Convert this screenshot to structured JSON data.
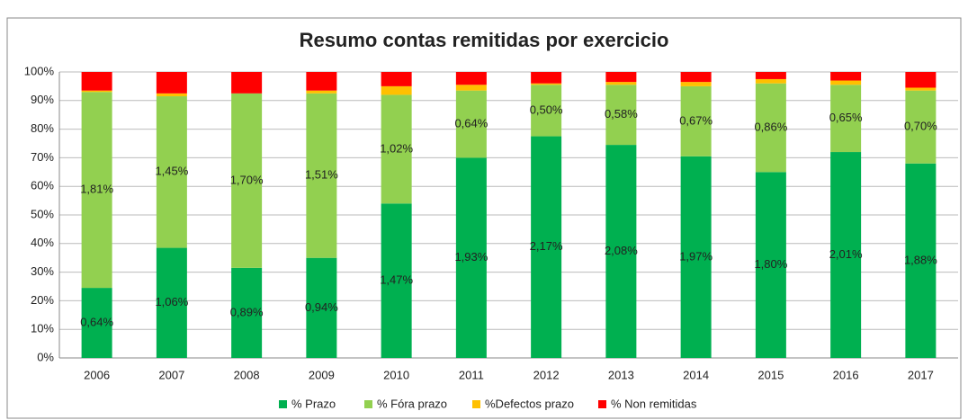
{
  "chart_data": {
    "type": "stacked_bar",
    "title": "Resumo contas remitidas por exercicio",
    "categories": [
      "2006",
      "2007",
      "2008",
      "2009",
      "2010",
      "2011",
      "2012",
      "2013",
      "2014",
      "2015",
      "2016",
      "2017"
    ],
    "series": [
      {
        "name": "% Prazo",
        "color": "#00b050",
        "values": [
          24.5,
          38.5,
          31.5,
          35,
          54,
          70,
          77.5,
          74.5,
          70.5,
          65,
          72,
          68
        ],
        "data_labels": [
          "0,64%",
          "1,06%",
          "0,89%",
          "0,94%",
          "1,47%",
          "1,93%",
          "2,17%",
          "2,08%",
          "1,97%",
          "1,80%",
          "2,01%",
          "1,88%"
        ]
      },
      {
        "name": "% Fóra prazo",
        "color": "#92d050",
        "values": [
          68.5,
          53,
          61,
          57.5,
          38,
          23.5,
          18,
          21,
          24.5,
          31,
          23.5,
          25.5
        ],
        "data_labels": [
          "1,81%",
          "1,45%",
          "1,70%",
          "1,51%",
          "1,02%",
          "0,64%",
          "0,50%",
          "0,58%",
          "0,67%",
          "0,86%",
          "0,65%",
          "0,70%"
        ]
      },
      {
        "name": "%Defectos prazo",
        "color": "#ffc000",
        "values": [
          0.5,
          1,
          0,
          1,
          3,
          2,
          0.5,
          1,
          1.5,
          1.5,
          1.5,
          1
        ]
      },
      {
        "name": "% Non remitidas",
        "color": "#ff0000",
        "values": [
          6.5,
          7.5,
          7.5,
          6.5,
          5,
          4.5,
          4,
          3.5,
          3.5,
          2.5,
          3,
          5.5
        ]
      }
    ],
    "ylim": [
      0,
      100
    ],
    "yticks": [
      {
        "value": 0,
        "label": "0%"
      },
      {
        "value": 10,
        "label": "10%"
      },
      {
        "value": 20,
        "label": "20%"
      },
      {
        "value": 30,
        "label": "30%"
      },
      {
        "value": 40,
        "label": "40%"
      },
      {
        "value": 50,
        "label": "50%"
      },
      {
        "value": 60,
        "label": "60%"
      },
      {
        "value": 70,
        "label": "70%"
      },
      {
        "value": 80,
        "label": "80%"
      },
      {
        "value": 90,
        "label": "90%"
      },
      {
        "value": 100,
        "label": "100%"
      }
    ],
    "grid": true,
    "legend": "bottom"
  }
}
